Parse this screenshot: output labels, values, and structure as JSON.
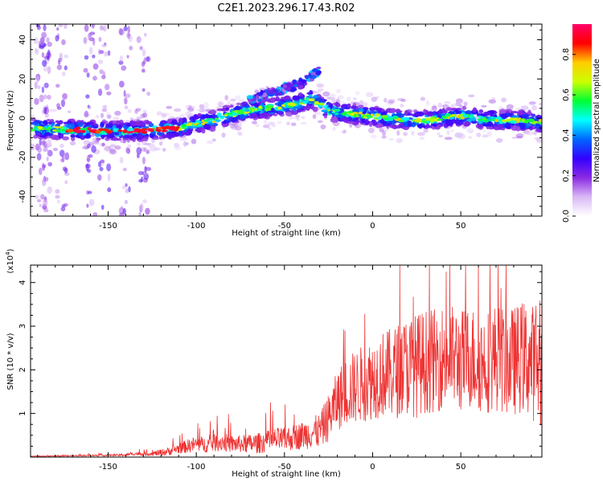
{
  "figure": {
    "title": "C2E1.2023.296.17.43.R02"
  },
  "chart_data": [
    {
      "type": "heatmap",
      "xlabel": "Height of straight line (km)",
      "ylabel": "Frequency (Hz)",
      "xlim": [
        -194,
        96
      ],
      "ylim": [
        -50,
        48
      ],
      "xticks": [
        -150,
        -100,
        -50,
        0,
        50
      ],
      "yticks": [
        -40,
        -20,
        0,
        20,
        40
      ],
      "grid": false,
      "colorbar": {
        "label": "Normalized spectral amplitude",
        "range": [
          0.0,
          0.95
        ],
        "ticks": [
          "0.0",
          "0.2",
          "0.4",
          "0.6",
          "0.8"
        ],
        "colormap": [
          "#ffffff",
          "#d9b8f5",
          "#8a2be2",
          "#3300ff",
          "#0066ff",
          "#00ffff",
          "#00ff33",
          "#ccff00",
          "#ffcc00",
          "#ff0000",
          "#ff0066"
        ]
      },
      "ridge": {
        "x": [
          -194,
          -170,
          -150,
          -130,
          -110,
          -100,
          -90,
          -80,
          -70,
          -60,
          -50,
          -40,
          -35,
          -30,
          -25,
          -20,
          -10,
          0,
          10,
          20,
          30,
          40,
          50,
          60,
          70,
          80,
          96
        ],
        "y": [
          -5,
          -6,
          -6.5,
          -6.5,
          -5,
          -3,
          -1,
          2,
          4,
          5,
          6,
          8,
          10,
          7,
          4,
          3,
          2,
          1,
          0,
          -1,
          -1,
          0,
          1,
          0,
          -1,
          -1,
          -2
        ]
      },
      "secondary_branch": {
        "x": [
          -70,
          -60,
          -50,
          -40,
          -35,
          -30
        ],
        "y": [
          9,
          12,
          15,
          18,
          21,
          25
        ]
      }
    },
    {
      "type": "line",
      "xlabel": "Height of straight line (km)",
      "ylabel": "SNR (10 * v/v)",
      "multiplier": "(x10",
      "multiplier_exp": "4",
      "multiplier_close": ")",
      "xlim": [
        -194,
        96
      ],
      "ylim": [
        0,
        4.4
      ],
      "xticks": [
        -150,
        -100,
        -50,
        0,
        50
      ],
      "yticks": [
        1,
        2,
        3,
        4
      ],
      "grid": false,
      "color": "#ee3333",
      "series": [
        {
          "x": [
            -194,
            -180,
            -170,
            -160,
            -150,
            -140,
            -135,
            -130,
            -125,
            -120,
            -115,
            -110,
            -105,
            -100,
            -95,
            -90,
            -85,
            -80,
            -75,
            -70,
            -65,
            -60,
            -55,
            -50,
            -45,
            -40,
            -35,
            -30,
            -25,
            -20,
            -15,
            -10,
            -5,
            0,
            5,
            10,
            15,
            20,
            25,
            30,
            35,
            40,
            45,
            50,
            55,
            60,
            65,
            70,
            75,
            80,
            85,
            90,
            96
          ],
          "values": [
            0.02,
            0.02,
            0.03,
            0.04,
            0.04,
            0.05,
            0.08,
            0.07,
            0.08,
            0.1,
            0.14,
            0.2,
            0.25,
            0.3,
            0.28,
            0.32,
            0.35,
            0.3,
            0.3,
            0.3,
            0.32,
            0.35,
            0.4,
            0.4,
            0.45,
            0.5,
            0.55,
            0.6,
            0.9,
            1.3,
            1.5,
            1.6,
            1.7,
            1.8,
            1.9,
            1.9,
            2.0,
            2.1,
            2.1,
            2.2,
            2.2,
            2.3,
            2.3,
            2.2,
            2.3,
            2.2,
            2.2,
            2.3,
            2.2,
            2.2,
            2.3,
            2.2,
            2.0
          ],
          "noise": [
            0.01,
            0.01,
            0.015,
            0.02,
            0.02,
            0.03,
            0.04,
            0.04,
            0.05,
            0.08,
            0.1,
            0.12,
            0.16,
            0.18,
            0.18,
            0.2,
            0.22,
            0.2,
            0.2,
            0.22,
            0.24,
            0.25,
            0.28,
            0.28,
            0.3,
            0.32,
            0.36,
            0.4,
            0.55,
            0.7,
            0.8,
            0.85,
            0.9,
            0.95,
            1.0,
            1.05,
            1.1,
            1.15,
            1.2,
            1.2,
            1.2,
            1.2,
            1.2,
            1.2,
            1.2,
            1.2,
            1.2,
            1.25,
            1.25,
            1.25,
            1.3,
            1.35,
            1.3
          ]
        }
      ]
    }
  ]
}
